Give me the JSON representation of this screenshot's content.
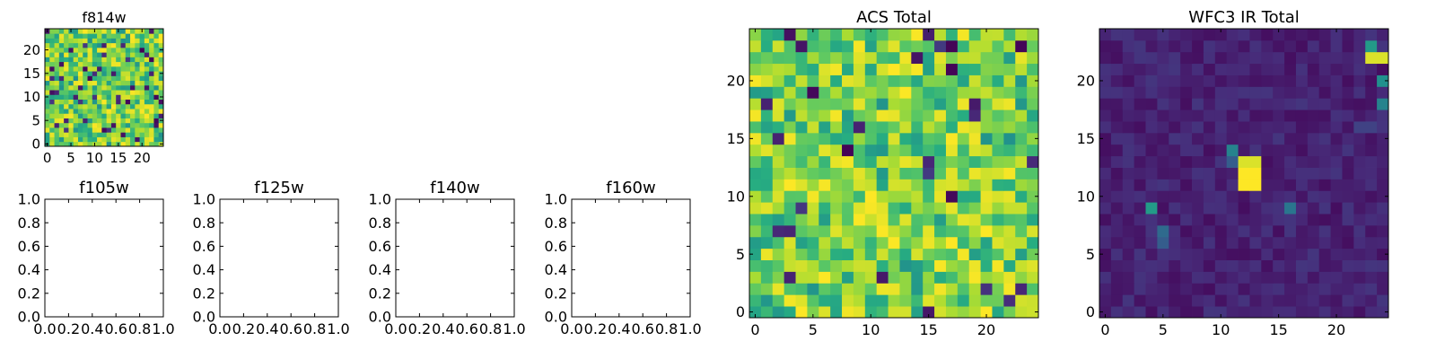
{
  "chart_data": [
    {
      "type": "heatmap",
      "title": "f814w",
      "grid_size": [
        25,
        25
      ],
      "xlim": [
        -0.5,
        24.5
      ],
      "ylim": [
        -0.5,
        24.5
      ],
      "xticks": [
        0,
        5,
        10,
        15,
        20
      ],
      "yticks": [
        0,
        5,
        10,
        15,
        20
      ],
      "colormap": "viridis",
      "values_note": "random noise field, values in [0,1]",
      "seed": 814
    },
    {
      "type": "heatmap",
      "title": "ACS Total",
      "grid_size": [
        25,
        25
      ],
      "xlim": [
        -0.5,
        24.5
      ],
      "ylim": [
        -0.5,
        24.5
      ],
      "xticks": [
        0,
        5,
        10,
        15,
        20
      ],
      "yticks": [
        0,
        5,
        10,
        15,
        20
      ],
      "colormap": "viridis",
      "seed": 42
    },
    {
      "type": "heatmap",
      "title": "WFC3 IR Total",
      "grid_size": [
        25,
        25
      ],
      "xlim": [
        -0.5,
        24.5
      ],
      "ylim": [
        -0.5,
        24.5
      ],
      "xticks": [
        0,
        5,
        10,
        15,
        20
      ],
      "yticks": [
        0,
        5,
        10,
        15,
        20
      ],
      "colormap": "viridis",
      "background_level": 0.04,
      "seed": 7,
      "bright_cells": [
        {
          "x": 12,
          "y": 11,
          "v": 1.0
        },
        {
          "x": 13,
          "y": 11,
          "v": 1.0
        },
        {
          "x": 12,
          "y": 12,
          "v": 1.0
        },
        {
          "x": 13,
          "y": 12,
          "v": 1.0
        },
        {
          "x": 12,
          "y": 13,
          "v": 0.95
        },
        {
          "x": 13,
          "y": 13,
          "v": 0.95
        },
        {
          "x": 11,
          "y": 14,
          "v": 0.45
        },
        {
          "x": 11,
          "y": 13,
          "v": 0.3
        },
        {
          "x": 4,
          "y": 9,
          "v": 0.55
        },
        {
          "x": 5,
          "y": 7,
          "v": 0.35
        },
        {
          "x": 5,
          "y": 6,
          "v": 0.3
        },
        {
          "x": 16,
          "y": 9,
          "v": 0.4
        },
        {
          "x": 23,
          "y": 22,
          "v": 0.95
        },
        {
          "x": 24,
          "y": 22,
          "v": 0.95
        },
        {
          "x": 23,
          "y": 23,
          "v": 0.55
        },
        {
          "x": 24,
          "y": 20,
          "v": 0.5
        },
        {
          "x": 24,
          "y": 18,
          "v": 0.45
        },
        {
          "x": 22,
          "y": 16,
          "v": 0.2
        },
        {
          "x": 23,
          "y": 16,
          "v": 0.2
        }
      ]
    },
    {
      "type": "empty",
      "title": "f105w",
      "xlim": [
        0,
        1
      ],
      "ylim": [
        0,
        1
      ],
      "xticks": [
        "0.0",
        "0.2",
        "0.4",
        "0.6",
        "0.8",
        "1.0"
      ],
      "yticks": [
        "0.0",
        "0.2",
        "0.4",
        "0.6",
        "0.8",
        "1.0"
      ]
    },
    {
      "type": "empty",
      "title": "f125w",
      "xlim": [
        0,
        1
      ],
      "ylim": [
        0,
        1
      ],
      "xticks": [
        "0.0",
        "0.2",
        "0.4",
        "0.6",
        "0.8",
        "1.0"
      ],
      "yticks": [
        "0.0",
        "0.2",
        "0.4",
        "0.6",
        "0.8",
        "1.0"
      ]
    },
    {
      "type": "empty",
      "title": "f140w",
      "xlim": [
        0,
        1
      ],
      "ylim": [
        0,
        1
      ],
      "xticks": [
        "0.0",
        "0.2",
        "0.4",
        "0.6",
        "0.8",
        "1.0"
      ],
      "yticks": [
        "0.0",
        "0.2",
        "0.4",
        "0.6",
        "0.8",
        "1.0"
      ]
    },
    {
      "type": "empty",
      "title": "f160w",
      "xlim": [
        0,
        1
      ],
      "ylim": [
        0,
        1
      ],
      "xticks": [
        "0.0",
        "0.2",
        "0.4",
        "0.6",
        "0.8",
        "1.0"
      ],
      "yticks": [
        "0.0",
        "0.2",
        "0.4",
        "0.6",
        "0.8",
        "1.0"
      ]
    }
  ]
}
